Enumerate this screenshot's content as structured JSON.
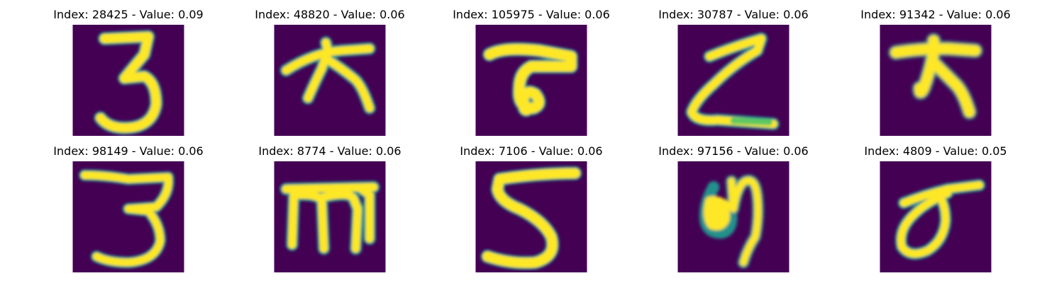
{
  "colors": {
    "background": "#440154",
    "mid_dark": "#3b528b",
    "mid": "#21918c",
    "mid_light": "#5ec962",
    "stroke": "#fde725"
  },
  "panels": [
    {
      "title": "Index: 28425 - Value: 0.09",
      "glyph": "3"
    },
    {
      "title": "Index: 48820 - Value: 0.06",
      "glyph": "T-hook"
    },
    {
      "title": "Index: 105975 - Value: 0.06",
      "glyph": "T-curl"
    },
    {
      "title": "Index: 30787 - Value: 0.06",
      "glyph": "Z"
    },
    {
      "title": "Index: 91342 - Value: 0.06",
      "glyph": "T-hook-bold"
    },
    {
      "title": "Index: 98149 - Value: 0.06",
      "glyph": "3-flat"
    },
    {
      "title": "Index: 8774 - Value: 0.06",
      "glyph": "m-bar"
    },
    {
      "title": "Index: 7106 - Value: 0.06",
      "glyph": "5"
    },
    {
      "title": "Index: 97156 - Value: 0.06",
      "glyph": "y-curl"
    },
    {
      "title": "Index: 4809 - Value: 0.05",
      "glyph": "sigma"
    }
  ]
}
